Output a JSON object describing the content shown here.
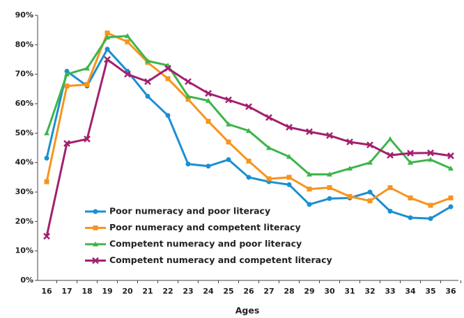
{
  "chart_data": {
    "type": "line",
    "x_label": "Ages",
    "categories": [
      "16",
      "17",
      "18",
      "19",
      "20",
      "21",
      "22",
      "23",
      "24",
      "25",
      "26",
      "27",
      "28",
      "29",
      "30",
      "31",
      "32",
      "33",
      "34",
      "35",
      "36"
    ],
    "series": [
      {
        "name": "Poor numeracy and poor literacy",
        "color": "#1a8fd1",
        "marker": "circle",
        "values": [
          41.5,
          71,
          66,
          78.5,
          71,
          62.5,
          56,
          39.5,
          38.8,
          41,
          35,
          33.5,
          32.5,
          25.8,
          27.8,
          28,
          30,
          23.5,
          21.3,
          21,
          25
        ]
      },
      {
        "name": "Poor numeracy and competent literacy",
        "color": "#f7941d",
        "marker": "square",
        "values": [
          33.5,
          66,
          66.5,
          84,
          81,
          74,
          68.5,
          61.5,
          54,
          47,
          40.5,
          34.5,
          35,
          31,
          31.5,
          28.5,
          27,
          31.5,
          28,
          25.5,
          28
        ]
      },
      {
        "name": "Competent numeracy and poor literacy",
        "color": "#3cb54a",
        "marker": "triangle",
        "values": [
          50,
          70,
          72,
          82.5,
          83,
          74.5,
          73,
          62.5,
          61,
          53,
          50.8,
          45,
          42,
          36,
          36,
          38,
          40,
          48,
          40,
          41,
          38
        ]
      },
      {
        "name": "Competent numeracy and competent literacy",
        "color": "#a3206e",
        "marker": "x",
        "values": [
          15,
          46.5,
          48,
          75,
          70,
          67.5,
          72,
          67.5,
          63.5,
          61.3,
          59,
          55.3,
          52,
          50.5,
          49.2,
          47,
          46,
          42.5,
          43.2,
          43.3,
          42.3
        ]
      }
    ],
    "ylim": [
      0,
      90
    ],
    "yticks": [
      {
        "value": 0,
        "label": "0%"
      },
      {
        "value": 10,
        "label": "10%"
      },
      {
        "value": 20,
        "label": "20%"
      },
      {
        "value": 30,
        "label": "30%"
      },
      {
        "value": 40,
        "label": "40%"
      },
      {
        "value": 50,
        "label": "50%"
      },
      {
        "value": 60,
        "label": "60%"
      },
      {
        "value": 70,
        "label": "70%"
      },
      {
        "value": 80,
        "label": "80%"
      },
      {
        "value": 90,
        "label": "90%"
      }
    ],
    "legend": "lower left"
  }
}
